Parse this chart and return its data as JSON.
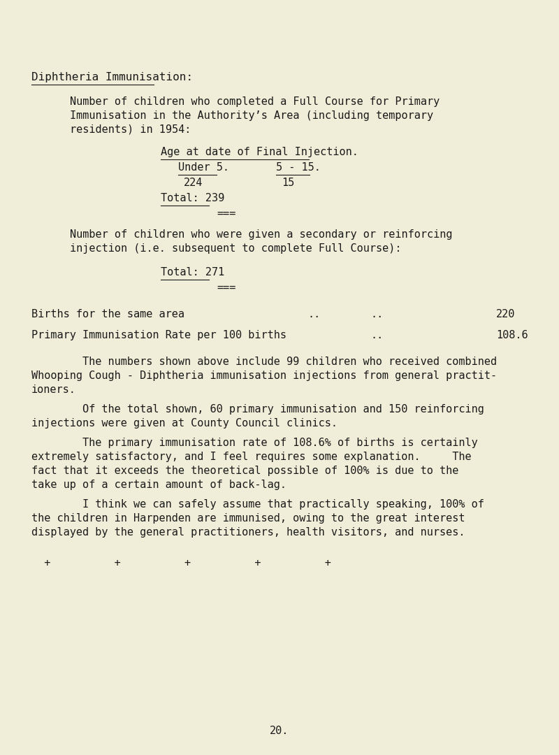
{
  "bg_color": "#f0edd8",
  "text_color": "#1a1a1a",
  "title": "Diphtheria Immunisation:",
  "para1_line1": "Number of children who completed a Full Course for Primary",
  "para1_line2": "Immunisation in the Authority’s Area (including temporary",
  "para1_line3": "residents) in 1954:",
  "table_header": "Age at date of Final Injection.",
  "col1_header": "Under 5.",
  "col2_header": "5 - 15.",
  "col1_value": "224",
  "col2_value": "15",
  "total1_label": "Total:",
  "total1_value": "239",
  "sep": "===",
  "para2_line1": "Number of children who were given a secondary or reinforcing",
  "para2_line2": "injection (i.e. subsequent to complete Full Course):",
  "total2_label": "Total:",
  "total2_value": "271",
  "births_label": "Births for the same area",
  "births_dots1": "..",
  "births_dots2": "..",
  "births_value": "220",
  "rate_label": "Primary Immunisation Rate per 100 births",
  "rate_dots": "..",
  "rate_value": "108.6",
  "para3_line1": "        The numbers shown above include 99 children who received combined",
  "para3_line2": "Whooping Cough - Diphtheria immunisation injections from general practit-",
  "para3_line3": "ioners.",
  "para4_line1": "        Of the total shown, 60 primary immunisation and 150 reinforcing",
  "para4_line2": "injections were given at County Council clinics.",
  "para5_line1": "        The primary immunisation rate of 108.6% of births is certainly",
  "para5_line2": "extremely satisfactory, and I feel requires some explanation.     The",
  "para5_line3": "fact that it exceeds the theoretical possible of 100% is due to the",
  "para5_line4": "take up of a certain amount of back-lag.",
  "para6_line1": "        I think we can safely assume that practically speaking, 100% of",
  "para6_line2": "the children in Harpenden are immunised, owing to the great interest",
  "para6_line3": "displayed by the general practitioners, health visitors, and nurses.",
  "plus_signs": "  +          +          +          +          +",
  "page_number": "20.",
  "lh": 0.0185,
  "fs_title": 11.5,
  "fs_body": 11.0
}
